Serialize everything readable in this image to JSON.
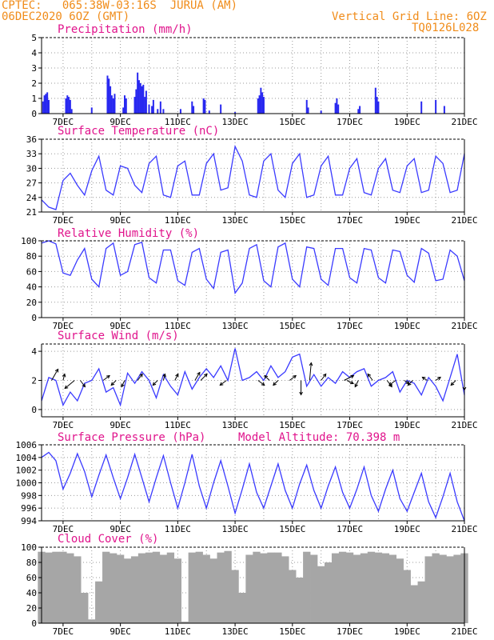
{
  "header": {
    "line1_left": "CPTEC:   065:38W-03:16S  JURUA (AM)",
    "line2_left": "06DEC2020 6OZ (GMT)",
    "line1_right": "Vertical Grid Line: 6OZ",
    "line2_right": "TQ0126L028"
  },
  "colors": {
    "header_text": "#f08c1a",
    "panel_title": "#e0148c",
    "series": "#3a3aff",
    "precip_bar": "#2828f0",
    "cloud_fill": "#a6a6a6",
    "wind_arrow": "#000000",
    "grid": "#9a9a9a"
  },
  "x_axis": {
    "range_days": [
      6.25,
      21
    ],
    "ticks": [
      7,
      9,
      11,
      13,
      15,
      17,
      19,
      21
    ],
    "tick_labels": [
      "7DEC",
      "9DEC",
      "11DEC",
      "13DEC",
      "15DEC",
      "17DEC",
      "19DEC",
      "21DEC"
    ],
    "vertical_grid": "6OZ daily"
  },
  "chart_data": [
    {
      "type": "bar",
      "title": "Precipitation (mm/h)",
      "ylim": [
        0,
        5
      ],
      "yticks": [
        0,
        1,
        2,
        3,
        4,
        5
      ],
      "grid": true,
      "x": [
        6.3,
        6.35,
        6.4,
        6.45,
        6.5,
        7.1,
        7.15,
        7.2,
        7.25,
        7.3,
        8.0,
        8.55,
        8.6,
        8.65,
        8.7,
        8.75,
        8.8,
        9.1,
        9.15,
        9.2,
        9.5,
        9.55,
        9.6,
        9.65,
        9.7,
        9.75,
        9.8,
        9.85,
        9.9,
        10.0,
        10.1,
        10.15,
        10.3,
        10.4,
        10.5,
        11.1,
        11.5,
        11.55,
        11.9,
        11.95,
        12.1,
        12.5,
        13.0,
        13.8,
        13.85,
        13.9,
        13.95,
        14.0,
        15.5,
        15.55,
        16.0,
        16.5,
        16.55,
        16.6,
        17.3,
        17.35,
        17.9,
        17.95,
        18.0,
        19.5,
        20.0,
        20.3
      ],
      "values": [
        0.8,
        1.2,
        1.3,
        1.4,
        0.9,
        1.0,
        1.2,
        1.1,
        0.9,
        0.3,
        0.4,
        2.5,
        2.3,
        1.8,
        1.2,
        1.0,
        1.3,
        0.4,
        1.2,
        1.0,
        1.1,
        1.6,
        2.7,
        2.2,
        2.0,
        1.8,
        1.9,
        1.1,
        1.5,
        0.6,
        0.5,
        0.9,
        0.3,
        0.8,
        0.3,
        0.3,
        0.8,
        0.5,
        1.0,
        0.9,
        0.2,
        0.6,
        0.1,
        1.0,
        1.2,
        1.7,
        1.4,
        1.1,
        0.9,
        0.4,
        0.2,
        0.7,
        1.0,
        0.6,
        0.3,
        0.5,
        1.7,
        1.1,
        0.8,
        0.8,
        0.9,
        0.5
      ]
    },
    {
      "type": "line",
      "title": "Surface Temperature (nC)",
      "ylim": [
        21,
        36
      ],
      "yticks": [
        21,
        24,
        27,
        30,
        33,
        36
      ],
      "grid": true,
      "x": [
        6.25,
        6.5,
        6.75,
        7.0,
        7.25,
        7.5,
        7.75,
        8.0,
        8.25,
        8.5,
        8.75,
        9.0,
        9.25,
        9.5,
        9.75,
        10.0,
        10.25,
        10.5,
        10.75,
        11.0,
        11.25,
        11.5,
        11.75,
        12.0,
        12.25,
        12.5,
        12.75,
        13.0,
        13.25,
        13.5,
        13.75,
        14.0,
        14.25,
        14.5,
        14.75,
        15.0,
        15.25,
        15.5,
        15.75,
        16.0,
        16.25,
        16.5,
        16.75,
        17.0,
        17.25,
        17.5,
        17.75,
        18.0,
        18.25,
        18.5,
        18.75,
        19.0,
        19.25,
        19.5,
        19.75,
        20.0,
        20.25,
        20.5,
        20.75,
        21.0
      ],
      "values": [
        23.5,
        22.0,
        21.5,
        27.5,
        29.0,
        26.5,
        24.5,
        29.5,
        32.5,
        25.5,
        24.5,
        30.5,
        30.0,
        26.5,
        25.0,
        31.0,
        32.5,
        24.5,
        24.0,
        30.5,
        31.5,
        24.5,
        24.5,
        31.0,
        33.0,
        25.5,
        26.0,
        34.5,
        31.5,
        24.5,
        24.0,
        31.5,
        33.0,
        25.5,
        24.0,
        31.0,
        33.0,
        24.0,
        24.5,
        30.5,
        32.5,
        24.5,
        24.5,
        30.0,
        32.0,
        25.0,
        24.5,
        30.0,
        32.0,
        25.5,
        25.0,
        30.5,
        32.0,
        25.0,
        25.5,
        32.5,
        31.0,
        25.0,
        25.5,
        33.0
      ]
    },
    {
      "type": "line",
      "title": "Relative Humidity (%)",
      "ylim": [
        0,
        100
      ],
      "yticks": [
        0,
        20,
        40,
        60,
        80,
        100
      ],
      "grid": true,
      "x": [
        6.25,
        6.5,
        6.75,
        7.0,
        7.25,
        7.5,
        7.75,
        8.0,
        8.25,
        8.5,
        8.75,
        9.0,
        9.25,
        9.5,
        9.75,
        10.0,
        10.25,
        10.5,
        10.75,
        11.0,
        11.25,
        11.5,
        11.75,
        12.0,
        12.25,
        12.5,
        12.75,
        13.0,
        13.25,
        13.5,
        13.75,
        14.0,
        14.25,
        14.5,
        14.75,
        15.0,
        15.25,
        15.5,
        15.75,
        16.0,
        16.25,
        16.5,
        16.75,
        17.0,
        17.25,
        17.5,
        17.75,
        18.0,
        18.25,
        18.5,
        18.75,
        19.0,
        19.25,
        19.5,
        19.75,
        20.0,
        20.25,
        20.5,
        20.75,
        21.0
      ],
      "values": [
        97,
        100,
        96,
        58,
        55,
        75,
        90,
        50,
        40,
        90,
        97,
        55,
        60,
        95,
        98,
        52,
        45,
        88,
        88,
        48,
        42,
        85,
        90,
        50,
        38,
        85,
        88,
        32,
        45,
        90,
        95,
        48,
        40,
        92,
        97,
        50,
        40,
        92,
        90,
        50,
        42,
        90,
        90,
        52,
        45,
        90,
        88,
        52,
        45,
        88,
        86,
        55,
        46,
        90,
        84,
        48,
        50,
        88,
        80,
        48
      ]
    },
    {
      "type": "line",
      "title": "Surface Wind (m/s)",
      "ylim": [
        -0.5,
        4.5
      ],
      "yticks": [
        0,
        2,
        4
      ],
      "grid": true,
      "x": [
        6.25,
        6.5,
        6.75,
        7.0,
        7.25,
        7.5,
        7.75,
        8.0,
        8.25,
        8.5,
        8.75,
        9.0,
        9.25,
        9.5,
        9.75,
        10.0,
        10.25,
        10.5,
        10.75,
        11.0,
        11.25,
        11.5,
        11.75,
        12.0,
        12.25,
        12.5,
        12.75,
        13.0,
        13.25,
        13.5,
        13.75,
        14.0,
        14.25,
        14.5,
        14.75,
        15.0,
        15.25,
        15.5,
        15.75,
        16.0,
        16.25,
        16.5,
        16.75,
        17.0,
        17.25,
        17.5,
        17.75,
        18.0,
        18.25,
        18.5,
        18.75,
        19.0,
        19.25,
        19.5,
        19.75,
        20.0,
        20.25,
        20.5,
        20.75,
        21.0
      ],
      "values": [
        0.6,
        2.2,
        2.0,
        0.3,
        1.2,
        0.6,
        1.8,
        2.0,
        2.8,
        1.2,
        1.5,
        0.3,
        2.5,
        1.8,
        2.6,
        2.0,
        0.8,
        2.4,
        1.6,
        1.0,
        2.6,
        1.4,
        2.2,
        2.8,
        2.2,
        3.0,
        2.0,
        4.2,
        2.0,
        2.2,
        2.6,
        2.0,
        3.0,
        2.2,
        2.6,
        3.6,
        3.8,
        1.6,
        2.4,
        1.6,
        2.2,
        1.8,
        2.6,
        2.2,
        2.6,
        2.8,
        1.6,
        2.0,
        2.2,
        2.6,
        1.2,
        2.0,
        1.8,
        1.0,
        2.2,
        1.6,
        0.6,
        2.2,
        3.8,
        1.0
      ],
      "arrows": {
        "x": [
          6.6,
          7.0,
          7.4,
          7.6,
          8.4,
          8.85,
          9.15,
          9.6,
          10.3,
          10.5,
          10.9,
          11.6,
          11.8,
          12.7,
          13.8,
          14.2,
          14.5,
          14.9,
          15.3,
          15.6,
          16.0,
          16.8,
          16.9,
          17.3,
          17.8,
          18.3,
          18.6,
          18.9,
          19.2,
          19.7,
          20.0,
          20.7,
          21.0
        ],
        "dx": [
          8,
          2,
          -12,
          6,
          8,
          -6,
          -4,
          6,
          -6,
          2,
          4,
          6,
          8,
          -8,
          8,
          -6,
          -6,
          8,
          0,
          2,
          6,
          12,
          8,
          -4,
          -6,
          6,
          -8,
          6,
          -6,
          -6,
          6,
          -6,
          0
        ],
        "dy": [
          -14,
          -8,
          10,
          8,
          -6,
          6,
          8,
          -8,
          6,
          -8,
          -8,
          -10,
          -8,
          6,
          6,
          -6,
          6,
          -6,
          18,
          -22,
          -8,
          -6,
          4,
          8,
          -8,
          8,
          6,
          4,
          6,
          -4,
          -4,
          6,
          12
        ]
      }
    },
    {
      "type": "line",
      "title": "Surface Pressure (hPa)",
      "annotation": "Model Altitude: 70.398 m",
      "ylim": [
        994,
        1006
      ],
      "yticks": [
        994,
        996,
        998,
        1000,
        1002,
        1004,
        1006
      ],
      "grid": true,
      "x": [
        6.25,
        6.5,
        6.75,
        7.0,
        7.25,
        7.5,
        7.75,
        8.0,
        8.25,
        8.5,
        8.75,
        9.0,
        9.25,
        9.5,
        9.75,
        10.0,
        10.25,
        10.5,
        10.75,
        11.0,
        11.25,
        11.5,
        11.75,
        12.0,
        12.25,
        12.5,
        12.75,
        13.0,
        13.25,
        13.5,
        13.75,
        14.0,
        14.25,
        14.5,
        14.75,
        15.0,
        15.25,
        15.5,
        15.75,
        16.0,
        16.25,
        16.5,
        16.75,
        17.0,
        17.25,
        17.5,
        17.75,
        18.0,
        18.25,
        18.5,
        18.75,
        19.0,
        19.25,
        19.5,
        19.75,
        20.0,
        20.25,
        20.5,
        20.75,
        21.0
      ],
      "values": [
        1004.0,
        1004.8,
        1003.5,
        999.0,
        1001.5,
        1004.6,
        1001.8,
        997.8,
        1001.2,
        1004.4,
        1000.8,
        997.5,
        1000.8,
        1004.5,
        1000.8,
        997.0,
        1000.8,
        1004.3,
        1000.0,
        996.0,
        1000.0,
        1004.5,
        999.5,
        996.0,
        1000.0,
        1003.5,
        999.5,
        995.2,
        999.0,
        1003.0,
        998.5,
        996.0,
        999.5,
        1003.0,
        998.8,
        996.0,
        999.8,
        1002.8,
        998.8,
        996.0,
        999.5,
        1002.5,
        998.5,
        996.0,
        999.0,
        1002.5,
        998.0,
        995.5,
        999.0,
        1002.0,
        997.5,
        995.5,
        998.5,
        1001.5,
        997.0,
        994.5,
        997.8,
        1001.5,
        997.0,
        994.0
      ]
    },
    {
      "type": "bar",
      "title": "Cloud Cover (%)",
      "ylim": [
        0,
        100
      ],
      "yticks": [
        0,
        20,
        40,
        60,
        80,
        100
      ],
      "grid": true,
      "x": [
        6.25,
        6.5,
        6.75,
        7.0,
        7.25,
        7.5,
        7.75,
        8.0,
        8.25,
        8.5,
        8.75,
        9.0,
        9.25,
        9.5,
        9.75,
        10.0,
        10.25,
        10.5,
        10.75,
        11.0,
        11.25,
        11.5,
        11.75,
        12.0,
        12.25,
        12.5,
        12.75,
        13.0,
        13.25,
        13.5,
        13.75,
        14.0,
        14.25,
        14.5,
        14.75,
        15.0,
        15.25,
        15.5,
        15.75,
        16.0,
        16.25,
        16.5,
        16.75,
        17.0,
        17.25,
        17.5,
        17.75,
        18.0,
        18.25,
        18.5,
        18.75,
        19.0,
        19.25,
        19.5,
        19.75,
        20.0,
        20.25,
        20.5,
        20.75,
        21.0
      ],
      "values": [
        94,
        93,
        94,
        94,
        92,
        88,
        40,
        5,
        55,
        94,
        92,
        90,
        85,
        88,
        92,
        93,
        94,
        90,
        93,
        85,
        2,
        93,
        94,
        90,
        85,
        93,
        95,
        70,
        40,
        90,
        94,
        92,
        93,
        93,
        88,
        70,
        60,
        94,
        90,
        75,
        80,
        92,
        94,
        93,
        90,
        92,
        94,
        93,
        92,
        90,
        85,
        70,
        50,
        55,
        88,
        92,
        90,
        88,
        90,
        92
      ]
    }
  ]
}
